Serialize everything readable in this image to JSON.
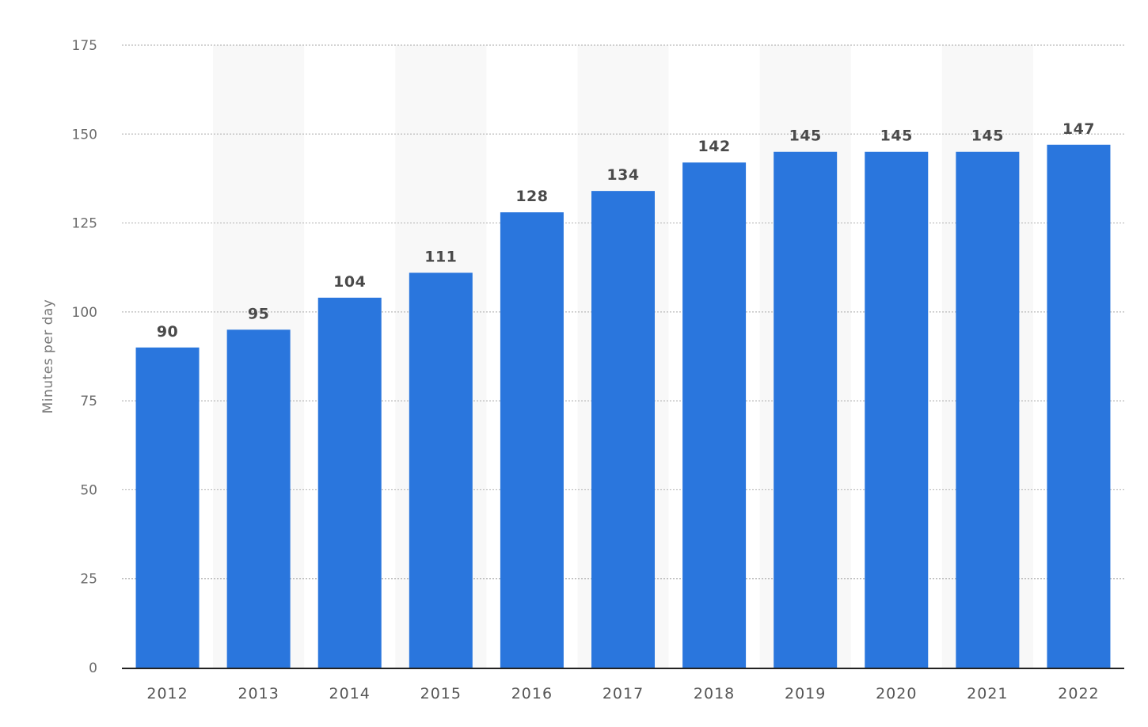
{
  "chart_data": {
    "type": "bar",
    "categories": [
      "2012",
      "2013",
      "2014",
      "2015",
      "2016",
      "2017",
      "2018",
      "2019",
      "2020",
      "2021",
      "2022"
    ],
    "values": [
      90,
      95,
      104,
      111,
      128,
      134,
      142,
      145,
      145,
      145,
      147
    ],
    "xlabel": "",
    "ylabel": "Minutes per day",
    "ylim": [
      0,
      175
    ],
    "yticks": [
      0,
      25,
      50,
      75,
      100,
      125,
      150,
      175
    ],
    "grid": true,
    "legend": "none",
    "bar_color": "#2a76dd",
    "band_color": "#f8f8f8",
    "grid_color": "#b9b9b9",
    "axis_color": "#222222"
  }
}
